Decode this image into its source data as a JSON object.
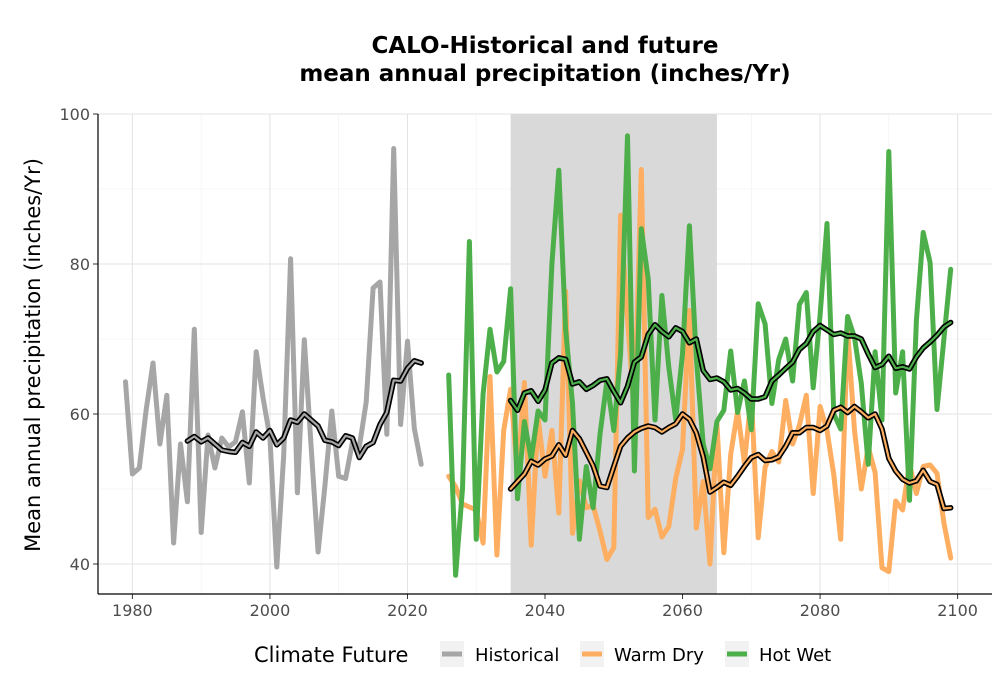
{
  "chart_data": {
    "type": "line",
    "title_line1": "CALO-Historical and future",
    "title_line2": "mean annual precipitation (inches/Yr)",
    "ylabel": "Mean annual precipitation (inches/Yr)",
    "xlabel": "",
    "xlim": [
      1975,
      2105
    ],
    "ylim": [
      36,
      100
    ],
    "x_ticks": [
      1980,
      2000,
      2020,
      2040,
      2060,
      2080,
      2100
    ],
    "y_ticks": [
      40,
      60,
      80,
      100
    ],
    "grid": true,
    "shaded_period": [
      2035,
      2065
    ],
    "legend": {
      "title": "Climate Future",
      "position": "bottom",
      "entries": [
        {
          "label": "Historical",
          "color": "#a6a6a6"
        },
        {
          "label": "Warm Dry",
          "color": "#fdae61"
        },
        {
          "label": "Hot Wet",
          "color": "#4daf4a"
        }
      ]
    },
    "series": [
      {
        "name": "Historical",
        "color": "#a6a6a6",
        "x": [
          1979,
          1980,
          1981,
          1982,
          1983,
          1984,
          1985,
          1986,
          1987,
          1988,
          1989,
          1990,
          1991,
          1992,
          1993,
          1994,
          1995,
          1996,
          1997,
          1998,
          1999,
          2000,
          2001,
          2002,
          2003,
          2004,
          2005,
          2006,
          2007,
          2008,
          2009,
          2010,
          2011,
          2012,
          2013,
          2014,
          2015,
          2016,
          2017,
          2018,
          2019,
          2020,
          2021,
          2022
        ],
        "values": [
          64.3,
          52,
          52.8,
          60.5,
          66.8,
          56,
          62.5,
          42.8,
          56,
          48.3,
          71.3,
          44.2,
          57.2,
          52.8,
          56.8,
          55.6,
          56.3,
          60.3,
          50.8,
          68.3,
          62.2,
          56.9,
          39.6,
          54.5,
          80.7,
          49.5,
          69.9,
          55.5,
          41.6,
          50.4,
          60.4,
          51.7,
          51.4,
          56.2,
          55.6,
          61.6,
          76.8,
          77.6,
          57.3,
          95.4,
          58.6,
          69.7,
          58.1,
          53.3
        ],
        "ma_x": [
          1988,
          1989,
          1990,
          1991,
          1992,
          1993,
          1994,
          1995,
          1996,
          1997,
          1998,
          1999,
          2000,
          2001,
          2002,
          2003,
          2004,
          2005,
          2006,
          2007,
          2008,
          2009,
          2010,
          2011,
          2012,
          2013,
          2014,
          2015,
          2016,
          2017,
          2018,
          2019,
          2020,
          2021,
          2022
        ],
        "ma": [
          56.4,
          57,
          56.3,
          56.8,
          56,
          55.2,
          55,
          54.9,
          56.2,
          55.7,
          57.6,
          56.8,
          57.8,
          55.9,
          56.8,
          59.2,
          58.9,
          60,
          59.2,
          58.4,
          56.5,
          56.3,
          55.8,
          57.1,
          56.8,
          54.2,
          55.7,
          56.2,
          58.6,
          60.2,
          64.5,
          64.4,
          66.1,
          67.1,
          66.8
        ]
      },
      {
        "name": "Warm Dry",
        "color": "#fdae61",
        "x": [
          2026,
          2027,
          2028,
          2029,
          2030,
          2031,
          2032,
          2033,
          2034,
          2035,
          2036,
          2037,
          2038,
          2039,
          2040,
          2041,
          2042,
          2043,
          2044,
          2045,
          2046,
          2047,
          2048,
          2049,
          2050,
          2051,
          2052,
          2053,
          2054,
          2055,
          2056,
          2057,
          2058,
          2059,
          2060,
          2061,
          2062,
          2063,
          2064,
          2065,
          2066,
          2067,
          2068,
          2069,
          2070,
          2071,
          2072,
          2073,
          2074,
          2075,
          2076,
          2077,
          2078,
          2079,
          2080,
          2081,
          2082,
          2083,
          2084,
          2085,
          2086,
          2087,
          2088,
          2089,
          2090,
          2091,
          2092,
          2093,
          2094,
          2095,
          2096,
          2097,
          2098,
          2099
        ],
        "values": [
          51.7,
          50.3,
          48,
          47.6,
          47.2,
          42.8,
          65,
          41.2,
          57.8,
          63.3,
          51.8,
          64.2,
          42.5,
          59.5,
          51.7,
          57.8,
          46.8,
          76.4,
          44.1,
          51.1,
          47.5,
          47.8,
          44.4,
          40.6,
          42.2,
          86.5,
          72.8,
          59.8,
          92.6,
          46.2,
          47.3,
          43.6,
          45,
          51.4,
          55.3,
          73.8,
          44.8,
          51,
          40,
          58.8,
          41.5,
          54.6,
          60.4,
          53.5,
          62.5,
          43.5,
          52.9,
          55,
          53.6,
          61.8,
          56,
          58.5,
          62.5,
          49.4,
          61,
          57.8,
          51.9,
          43.3,
          71.3,
          57.8,
          50,
          55.6,
          52.2,
          39.5,
          39,
          48.4,
          47.2,
          53.3,
          49.4,
          53,
          53.2,
          52.1,
          45.5,
          40.8
        ],
        "ma_x": [
          2035,
          2036,
          2037,
          2038,
          2039,
          2040,
          2041,
          2042,
          2043,
          2044,
          2045,
          2046,
          2047,
          2048,
          2049,
          2050,
          2051,
          2052,
          2053,
          2054,
          2055,
          2056,
          2057,
          2058,
          2059,
          2060,
          2061,
          2062,
          2063,
          2064,
          2065,
          2066,
          2067,
          2068,
          2069,
          2070,
          2071,
          2072,
          2073,
          2074,
          2075,
          2076,
          2077,
          2078,
          2079,
          2080,
          2081,
          2082,
          2083,
          2084,
          2085,
          2086,
          2087,
          2088,
          2089,
          2090,
          2091,
          2092,
          2093,
          2094,
          2095,
          2096,
          2097,
          2098,
          2099
        ],
        "ma": [
          50,
          51,
          52,
          53.7,
          53.2,
          54,
          54.4,
          55.9,
          54.5,
          57.8,
          56.7,
          54.9,
          53.1,
          50.4,
          50.2,
          53,
          55.7,
          56.8,
          57.6,
          58.1,
          58.4,
          58.2,
          57.6,
          58.2,
          58.7,
          60,
          59.3,
          57.5,
          54.3,
          49.6,
          50.2,
          50.9,
          50.5,
          51.7,
          53,
          54.2,
          54.6,
          53.8,
          53.9,
          54.3,
          55.7,
          57.5,
          57.5,
          58.2,
          58.2,
          57.8,
          58.4,
          60.5,
          60.9,
          60.2,
          61,
          60.3,
          59.5,
          60,
          58,
          54.1,
          52.4,
          51.3,
          50.8,
          51.1,
          52.5,
          51,
          50.6,
          47.4,
          47.5
        ]
      },
      {
        "name": "Hot Wet",
        "color": "#4daf4a",
        "x": [
          2026,
          2027,
          2028,
          2029,
          2030,
          2031,
          2032,
          2033,
          2034,
          2035,
          2036,
          2037,
          2038,
          2039,
          2040,
          2041,
          2042,
          2043,
          2044,
          2045,
          2046,
          2047,
          2048,
          2049,
          2050,
          2051,
          2052,
          2053,
          2054,
          2055,
          2056,
          2057,
          2058,
          2059,
          2060,
          2061,
          2062,
          2063,
          2064,
          2065,
          2066,
          2067,
          2068,
          2069,
          2070,
          2071,
          2072,
          2073,
          2074,
          2075,
          2076,
          2077,
          2078,
          2079,
          2080,
          2081,
          2082,
          2083,
          2084,
          2085,
          2086,
          2087,
          2088,
          2089,
          2090,
          2091,
          2092,
          2093,
          2094,
          2095,
          2096,
          2097,
          2098,
          2099
        ],
        "values": [
          65.2,
          38.5,
          50,
          83,
          43.3,
          62.7,
          71.3,
          65.6,
          67,
          76.7,
          48.7,
          59,
          54,
          60.4,
          59.2,
          80,
          92.5,
          71.3,
          61.4,
          43.3,
          53,
          47.5,
          57.3,
          64.4,
          57.8,
          68,
          97.1,
          52.4,
          84.7,
          78,
          59.2,
          75.8,
          66.2,
          59.3,
          68,
          85.1,
          67.5,
          56,
          52.7,
          59,
          60.5,
          68.4,
          60.2,
          64.4,
          57.9,
          74.7,
          72,
          61.4,
          67.3,
          70,
          64.4,
          74.6,
          76.2,
          63.5,
          73.2,
          85.4,
          60,
          58,
          73,
          70.2,
          64.1,
          53.3,
          68.3,
          59.2,
          95,
          62.8,
          68.3,
          48.5,
          72.5,
          84.2,
          80.2,
          60.6,
          70,
          79.3
        ],
        "ma_x": [
          2035,
          2036,
          2037,
          2038,
          2039,
          2040,
          2041,
          2042,
          2043,
          2044,
          2045,
          2046,
          2047,
          2048,
          2049,
          2050,
          2051,
          2052,
          2053,
          2054,
          2055,
          2056,
          2057,
          2058,
          2059,
          2060,
          2061,
          2062,
          2063,
          2064,
          2065,
          2066,
          2067,
          2068,
          2069,
          2070,
          2071,
          2072,
          2073,
          2074,
          2075,
          2076,
          2077,
          2078,
          2079,
          2080,
          2081,
          2082,
          2083,
          2084,
          2085,
          2086,
          2087,
          2088,
          2089,
          2090,
          2091,
          2092,
          2093,
          2094,
          2095,
          2096,
          2097,
          2098,
          2099
        ],
        "ma": [
          61.8,
          60.5,
          62.8,
          63.1,
          61.7,
          63.2,
          66.8,
          67.5,
          67.3,
          64,
          64.3,
          63.3,
          63.8,
          64.5,
          64.7,
          63,
          61.5,
          63.7,
          66.9,
          67.6,
          70.6,
          71.9,
          71,
          70.3,
          71.5,
          71,
          69.5,
          70,
          65.8,
          64.6,
          64.8,
          64.3,
          63.2,
          63.4,
          62.8,
          62,
          62,
          62.3,
          64.4,
          65.2,
          66.1,
          66.9,
          68.6,
          69.4,
          71,
          71.8,
          71.2,
          70.6,
          70.8,
          70.4,
          70.4,
          70,
          68,
          66.2,
          66.6,
          67.7,
          66.1,
          66.3,
          66,
          67.6,
          68.8,
          69.6,
          70.5,
          71.6,
          72.2
        ]
      }
    ]
  }
}
